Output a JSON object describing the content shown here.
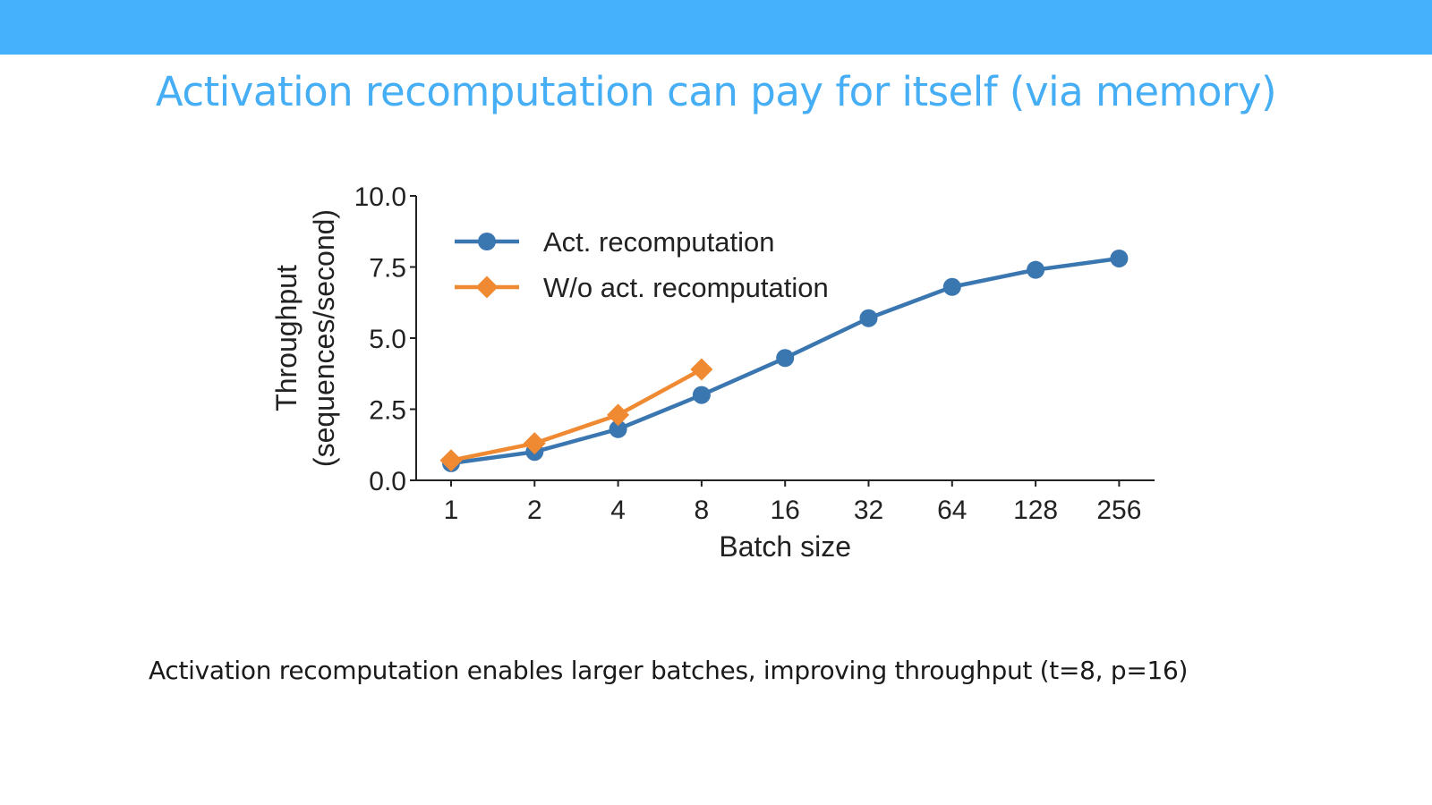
{
  "slide": {
    "title": "Activation recomputation can pay for itself (via memory)",
    "caption": "Activation recomputation enables larger batches, improving throughput (t=8, p=16)"
  },
  "colors": {
    "header_bar": "#45b0fc",
    "title": "#45aef5",
    "series_blue": "#3a76b0",
    "series_orange": "#ef8a33"
  },
  "chart_data": {
    "type": "line",
    "x_scale": "log2 (categorical ticks)",
    "x": [
      1,
      2,
      4,
      8,
      16,
      32,
      64,
      128,
      256
    ],
    "x_tick_labels": [
      "1",
      "2",
      "4",
      "8",
      "16",
      "32",
      "64",
      "128",
      "256"
    ],
    "xlabel": "Batch size",
    "ylabel_line1": "Throughput",
    "ylabel_line2": "(sequences/second)",
    "ylim": [
      0,
      10
    ],
    "y_ticks": [
      0,
      2.5,
      5,
      7.5,
      10
    ],
    "y_tick_labels": [
      "0.0",
      "2.5",
      "5.0",
      "7.5",
      "10.0"
    ],
    "grid": false,
    "legend_position": "top-left",
    "series": [
      {
        "name": "Act. recomputation",
        "marker": "circle",
        "color": "#3a76b0",
        "x": [
          1,
          2,
          4,
          8,
          16,
          32,
          64,
          128,
          256
        ],
        "y": [
          0.6,
          1.0,
          1.8,
          3.0,
          4.3,
          5.7,
          6.8,
          7.4,
          7.8
        ]
      },
      {
        "name": "W/o act. recomputation",
        "marker": "diamond",
        "color": "#ef8a33",
        "x": [
          1,
          2,
          4,
          8
        ],
        "y": [
          0.7,
          1.3,
          2.3,
          3.9
        ]
      }
    ]
  }
}
